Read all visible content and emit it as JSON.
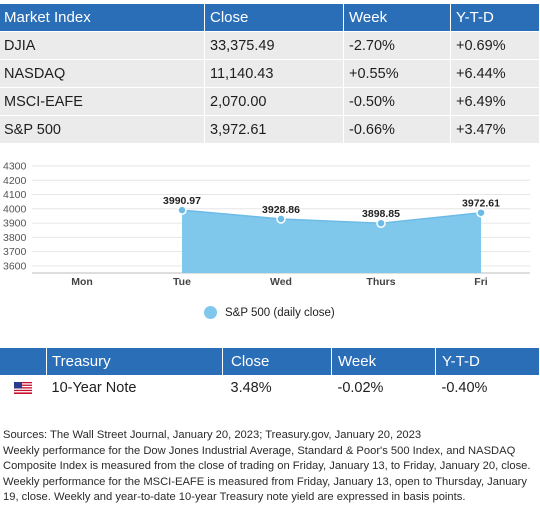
{
  "market_table": {
    "headers": [
      "Market Index",
      "Close",
      "Week",
      "Y-T-D"
    ],
    "rows": [
      [
        "DJIA",
        "33,375.49",
        "-2.70%",
        "+0.69%"
      ],
      [
        "NASDAQ",
        "11,140.43",
        "+0.55%",
        "+6.44%"
      ],
      [
        "MSCI-EAFE",
        "2,070.00",
        "-0.50%",
        "+6.49%"
      ],
      [
        "S&P 500",
        "3,972.61",
        "-0.66%",
        "+3.47%"
      ]
    ]
  },
  "chart_data": {
    "type": "area",
    "categories": [
      "Mon",
      "Tue",
      "Wed",
      "Thurs",
      "Fri"
    ],
    "series": [
      {
        "name": "S&P 500 (daily close)",
        "values": [
          null,
          3990.97,
          3928.86,
          3898.85,
          3972.61
        ]
      }
    ],
    "data_labels": [
      "",
      "3990.97",
      "3928.86",
      "3898.85",
      "3972.61"
    ],
    "y_ticks": [
      "3600",
      "3700",
      "3800",
      "3900",
      "4000",
      "4100",
      "4200",
      "4300"
    ],
    "ylim": [
      3550,
      4300
    ],
    "grid": true,
    "legend_position": "bottom",
    "colors": {
      "fill": "#80c7ec",
      "line": "#6bbbe6"
    }
  },
  "treasury_table": {
    "headers": [
      "",
      "Treasury",
      "Close",
      "Week",
      "Y-T-D"
    ],
    "row": {
      "flag_icon": "us-flag-icon",
      "label": "10-Year Note",
      "close": "3.48%",
      "week": "-0.02%",
      "ytd": "-0.40%"
    }
  },
  "sources": [
    "Sources: The Wall Street Journal, January 20, 2023; Treasury.gov, January 20, 2023",
    "Weekly performance for the Dow Jones Industrial Average, Standard & Poor's 500 Index, and NASDAQ Composite Index is measured from the close of trading on Friday, January 13, to Friday, January 20, close.",
    "Weekly performance for the MSCI-EAFE is measured from Friday, January 13, open to Thursday, January 19, close. Weekly and year-to-date 10-year Treasury note yield are expressed in basis points."
  ],
  "colors": {
    "header_blue": "#2b6eb8",
    "row_gray": "#ebebeb"
  }
}
